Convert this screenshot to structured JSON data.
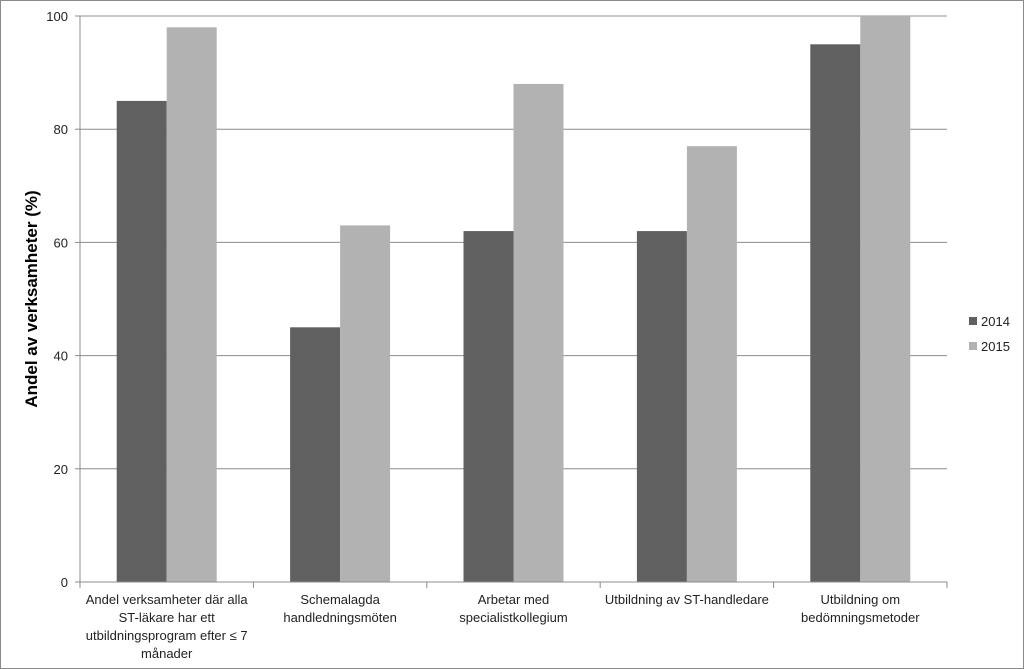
{
  "chart_data": {
    "type": "bar",
    "title": "",
    "xlabel": "",
    "ylabel": "Andel av verksamheter (%)",
    "ylim": [
      0,
      100
    ],
    "yticks": [
      0,
      20,
      40,
      60,
      80,
      100
    ],
    "grid": true,
    "legend_position": "right",
    "categories": [
      [
        "Andel verksamheter där alla",
        "ST-läkare har ett",
        "utbildningsprogram efter ≤ 7",
        "månader"
      ],
      [
        "Schemalagda",
        "handledningsmöten"
      ],
      [
        "Arbetar med",
        "specialistkollegium"
      ],
      [
        "Utbildning av ST-handledare"
      ],
      [
        "Utbildning om",
        "bedömningsmetoder"
      ]
    ],
    "series": [
      {
        "name": "2014",
        "color": "#606060",
        "values": [
          85,
          45,
          62,
          62,
          95
        ]
      },
      {
        "name": "2015",
        "color": "#b2b2b2",
        "values": [
          98,
          63,
          88,
          77,
          100
        ]
      }
    ]
  }
}
